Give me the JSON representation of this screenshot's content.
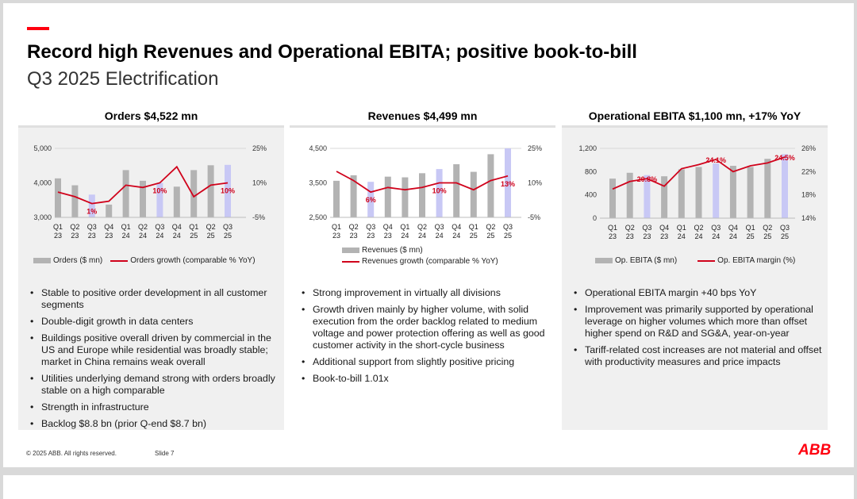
{
  "header": {
    "title": "Record high Revenues and Operational EBITA; positive book-to-bill",
    "subtitle": "Q3 2025 Electrification"
  },
  "footer": {
    "copyright": "© 2025 ABB. All rights reserved.",
    "slide": "Slide 7",
    "logo": "ABB"
  },
  "colors": {
    "accent": "#ff000f",
    "bar": "#b3b3b3",
    "bar_highlight": "#c8c8f5",
    "line": "#d0021b"
  },
  "panels": [
    {
      "title": "Orders $4,522 mn",
      "bullets": [
        "Stable to positive order development in all customer segments",
        "Double-digit growth in data centers",
        "Buildings positive overall driven by commercial in the US and Europe while residential was broadly stable; market in China remains weak overall",
        "Utilities underlying demand strong with orders broadly stable on a high comparable",
        "Strength in infrastructure",
        "Backlog $8.8 bn (prior Q-end $8.7 bn)"
      ]
    },
    {
      "title": "Revenues $4,499 mn",
      "bullets": [
        "Strong improvement in virtually all divisions",
        "Growth driven mainly by higher volume, with solid execution from the order backlog related to medium voltage and power protection offering as well as good customer activity in the short-cycle business",
        "Additional support from slightly positive pricing",
        "Book-to-bill 1.01x"
      ]
    },
    {
      "title": "Operational EBITA $1,100 mn, +17% YoY",
      "bullets": [
        "Operational EBITA margin +40 bps YoY",
        "Improvement was primarily supported by operational leverage on higher volumes which more than offset higher spend on R&D and SG&A, year-on-year",
        "Tariff-related cost increases are not material and offset with productivity measures and price impacts"
      ]
    }
  ],
  "chart_data": [
    {
      "type": "bar+line",
      "title": "Orders $4,522 mn",
      "categories": [
        "Q1 23",
        "Q2 23",
        "Q3 23",
        "Q4 23",
        "Q1 24",
        "Q2 24",
        "Q3 24",
        "Q4 24",
        "Q1 25",
        "Q2 25",
        "Q3 25"
      ],
      "quarters": [
        "Q1",
        "Q2",
        "Q3",
        "Q4",
        "Q1",
        "Q2",
        "Q3",
        "Q4",
        "Q1",
        "Q2",
        "Q3"
      ],
      "years": [
        "23",
        "23",
        "23",
        "23",
        "24",
        "24",
        "24",
        "24",
        "25",
        "25",
        "25"
      ],
      "bars": {
        "name": "Orders ($ mn)",
        "values": [
          4130,
          3930,
          3660,
          3370,
          4370,
          4060,
          4000,
          3890,
          4370,
          4510,
          4522
        ],
        "highlight": [
          2,
          6,
          10
        ]
      },
      "line": {
        "name": "Orders growth (comparable % YoY)",
        "values": [
          6,
          4,
          1,
          2,
          9,
          8,
          10,
          17,
          4,
          9,
          10
        ]
      },
      "left_axis": {
        "min": 3000,
        "max": 5000,
        "ticks": [
          "3,000",
          "4,000",
          "5,000"
        ]
      },
      "right_axis": {
        "min": -5,
        "max": 25,
        "ticks": [
          "-5%",
          "10%",
          "25%"
        ]
      },
      "labels": [
        {
          "index": 2,
          "text": "1%"
        },
        {
          "index": 6,
          "text": "10%"
        },
        {
          "index": 10,
          "text": "10%"
        }
      ]
    },
    {
      "type": "bar+line",
      "title": "Revenues $4,499 mn",
      "categories": [
        "Q1 23",
        "Q2 23",
        "Q3 23",
        "Q4 23",
        "Q1 24",
        "Q2 24",
        "Q3 24",
        "Q4 24",
        "Q1 25",
        "Q2 25",
        "Q3 25"
      ],
      "quarters": [
        "Q1",
        "Q2",
        "Q3",
        "Q4",
        "Q1",
        "Q2",
        "Q3",
        "Q4",
        "Q1",
        "Q2",
        "Q3"
      ],
      "years": [
        "23",
        "23",
        "23",
        "23",
        "24",
        "24",
        "24",
        "24",
        "25",
        "25",
        "25"
      ],
      "bars": {
        "name": "Revenues ($ mn)",
        "values": [
          3560,
          3720,
          3530,
          3680,
          3660,
          3780,
          3900,
          4040,
          3820,
          4330,
          4499
        ],
        "highlight": [
          2,
          6,
          10
        ]
      },
      "line": {
        "name": "Revenues growth (comparable % YoY)",
        "values": [
          15,
          11,
          6,
          8,
          7,
          8,
          10,
          10,
          7,
          11,
          13
        ]
      },
      "left_axis": {
        "min": 2500,
        "max": 4500,
        "ticks": [
          "2,500",
          "3,500",
          "4,500"
        ]
      },
      "right_axis": {
        "min": -5,
        "max": 25,
        "ticks": [
          "-5%",
          "10%",
          "25%"
        ]
      },
      "labels": [
        {
          "index": 2,
          "text": "6%"
        },
        {
          "index": 6,
          "text": "10%"
        },
        {
          "index": 10,
          "text": "13%"
        }
      ]
    },
    {
      "type": "bar+line",
      "title": "Operational EBITA $1,100 mn, +17% YoY",
      "categories": [
        "Q1 23",
        "Q2 23",
        "Q3 23",
        "Q4 23",
        "Q1 24",
        "Q2 24",
        "Q3 24",
        "Q4 24",
        "Q1 25",
        "Q2 25",
        "Q3 25"
      ],
      "quarters": [
        "Q1",
        "Q2",
        "Q3",
        "Q4",
        "Q1",
        "Q2",
        "Q3",
        "Q4",
        "Q1",
        "Q2",
        "Q3"
      ],
      "years": [
        "23",
        "23",
        "23",
        "23",
        "24",
        "24",
        "24",
        "24",
        "25",
        "25",
        "25"
      ],
      "bars": {
        "name": "Op. EBITA ($ mn)",
        "values": [
          680,
          780,
          740,
          720,
          840,
          880,
          940,
          900,
          880,
          1020,
          1100
        ],
        "highlight": [
          2,
          6,
          10
        ]
      },
      "line": {
        "name": "Op. EBITA margin (%)",
        "values": [
          19.0,
          20.3,
          20.8,
          19.5,
          22.5,
          23.2,
          24.1,
          22.0,
          23.0,
          23.5,
          24.5
        ]
      },
      "left_axis": {
        "min": 0,
        "max": 1200,
        "ticks": [
          "0",
          "400",
          "800",
          "1,200"
        ]
      },
      "right_axis": {
        "min": 14,
        "max": 26,
        "ticks": [
          "14%",
          "18%",
          "22%",
          "26%"
        ]
      },
      "labels": [
        {
          "index": 2,
          "text": "20.8%"
        },
        {
          "index": 6,
          "text": "24.1%"
        },
        {
          "index": 10,
          "text": "24.5%"
        }
      ]
    }
  ]
}
